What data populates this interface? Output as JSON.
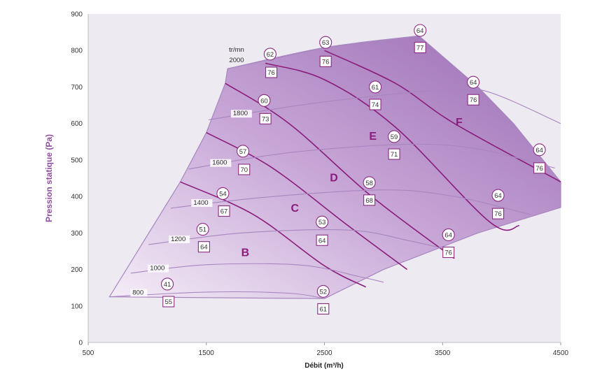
{
  "chart_data": {
    "type": "line",
    "title": "",
    "xlabel": "Débit (m³/h)",
    "ylabel": "Pression statique (Pa)",
    "xlim": [
      500,
      4500
    ],
    "ylim": [
      0,
      900
    ],
    "x_ticks": [
      500,
      1500,
      2500,
      3500,
      4500
    ],
    "y_ticks": [
      0,
      100,
      200,
      300,
      400,
      500,
      600,
      700,
      800,
      900
    ],
    "grid": false,
    "legend": "none",
    "colors": {
      "plot_bg": "#eeeaf2",
      "envelope_fill": "#cfb2dc",
      "zone_border": "#8a1c7c",
      "speed_line": "#a886c0",
      "accent": "#8e4f9e"
    },
    "speed_header": [
      "tr/mn",
      "2000"
    ],
    "speed_curves": [
      {
        "label": "800",
        "points": [
          [
            680,
            125
          ],
          [
            1500,
            138
          ],
          [
            2200,
            135
          ],
          [
            2500,
            120
          ]
        ]
      },
      {
        "label": "1000",
        "points": [
          [
            860,
            190
          ],
          [
            1500,
            213
          ],
          [
            2300,
            212
          ],
          [
            2800,
            180
          ],
          [
            3000,
            165
          ]
        ]
      },
      {
        "label": "1200",
        "points": [
          [
            1010,
            268
          ],
          [
            1800,
            300
          ],
          [
            2700,
            308
          ],
          [
            3200,
            280
          ],
          [
            3600,
            250
          ]
        ]
      },
      {
        "label": "1400",
        "points": [
          [
            1200,
            368
          ],
          [
            2000,
            398
          ],
          [
            3000,
            418
          ],
          [
            3600,
            400
          ],
          [
            4250,
            350
          ]
        ]
      },
      {
        "label": "1600",
        "points": [
          [
            1350,
            475
          ],
          [
            2200,
            520
          ],
          [
            3200,
            543
          ],
          [
            3800,
            530
          ],
          [
            4450,
            478
          ]
        ]
      },
      {
        "label": "1800",
        "points": [
          [
            1520,
            610
          ],
          [
            2400,
            655
          ],
          [
            3400,
            690
          ],
          [
            3850,
            690
          ],
          [
            4500,
            600
          ]
        ]
      },
      {
        "label": "2000",
        "points": [
          [
            1680,
            750
          ],
          [
            2500,
            808
          ],
          [
            3300,
            840
          ]
        ]
      }
    ],
    "zone_borders": [
      {
        "points": [
          [
            1280,
            440
          ],
          [
            1900,
            350
          ],
          [
            2500,
            210
          ],
          [
            2850,
            152
          ]
        ]
      },
      {
        "points": [
          [
            1500,
            575
          ],
          [
            2050,
            480
          ],
          [
            2700,
            320
          ],
          [
            3200,
            200
          ]
        ]
      },
      {
        "points": [
          [
            1660,
            710
          ],
          [
            2200,
            600
          ],
          [
            2900,
            400
          ],
          [
            3600,
            230
          ]
        ]
      },
      {
        "points": [
          [
            2000,
            765
          ],
          [
            2500,
            720
          ],
          [
            3100,
            590
          ],
          [
            3900,
            330
          ],
          [
            4150,
            320
          ]
        ]
      },
      {
        "points": [
          [
            2500,
            800
          ],
          [
            3100,
            710
          ],
          [
            3600,
            600
          ],
          [
            4500,
            440
          ]
        ]
      }
    ],
    "envelope_upper": [
      [
        680,
        125
      ],
      [
        1280,
        440
      ],
      [
        1500,
        575
      ],
      [
        1660,
        710
      ],
      [
        1680,
        750
      ],
      [
        2500,
        808
      ],
      [
        3300,
        840
      ],
      [
        3800,
        700
      ],
      [
        4100,
        600
      ],
      [
        4500,
        440
      ]
    ],
    "envelope_lower": [
      [
        4500,
        370
      ],
      [
        3800,
        300
      ],
      [
        3000,
        200
      ],
      [
        2500,
        120
      ],
      [
        680,
        125
      ]
    ],
    "zone_labels": [
      {
        "label": "B",
        "x": 1830,
        "y": 248
      },
      {
        "label": "C",
        "x": 2250,
        "y": 370
      },
      {
        "label": "D",
        "x": 2580,
        "y": 453
      },
      {
        "label": "E",
        "x": 2910,
        "y": 567
      },
      {
        "label": "F",
        "x": 3640,
        "y": 605
      }
    ],
    "efficiency_markers": [
      {
        "value": "41",
        "x": 1170,
        "y": 160
      },
      {
        "value": "51",
        "x": 1470,
        "y": 310
      },
      {
        "value": "54",
        "x": 1640,
        "y": 408
      },
      {
        "value": "57",
        "x": 1810,
        "y": 524
      },
      {
        "value": "60",
        "x": 1990,
        "y": 663
      },
      {
        "value": "62",
        "x": 2040,
        "y": 790
      },
      {
        "value": "63",
        "x": 2510,
        "y": 822
      },
      {
        "value": "64",
        "x": 3310,
        "y": 855
      },
      {
        "value": "61",
        "x": 2930,
        "y": 700
      },
      {
        "value": "59",
        "x": 3090,
        "y": 564
      },
      {
        "value": "58",
        "x": 2880,
        "y": 438
      },
      {
        "value": "53",
        "x": 2480,
        "y": 330
      },
      {
        "value": "52",
        "x": 2490,
        "y": 140
      },
      {
        "value": "64",
        "x": 3760,
        "y": 713
      },
      {
        "value": "64",
        "x": 4320,
        "y": 528
      },
      {
        "value": "64",
        "x": 3970,
        "y": 403
      },
      {
        "value": "64",
        "x": 3550,
        "y": 295
      }
    ],
    "noise_markers": [
      {
        "value": "55",
        "x": 1180,
        "y": 112
      },
      {
        "value": "64",
        "x": 1480,
        "y": 262
      },
      {
        "value": "67",
        "x": 1650,
        "y": 360
      },
      {
        "value": "70",
        "x": 1820,
        "y": 474
      },
      {
        "value": "73",
        "x": 2000,
        "y": 613
      },
      {
        "value": "76",
        "x": 2050,
        "y": 740
      },
      {
        "value": "76",
        "x": 2510,
        "y": 770
      },
      {
        "value": "77",
        "x": 3310,
        "y": 808
      },
      {
        "value": "74",
        "x": 2930,
        "y": 652
      },
      {
        "value": "71",
        "x": 3090,
        "y": 516
      },
      {
        "value": "68",
        "x": 2880,
        "y": 390
      },
      {
        "value": "64",
        "x": 2480,
        "y": 280
      },
      {
        "value": "61",
        "x": 2490,
        "y": 92
      },
      {
        "value": "76",
        "x": 3760,
        "y": 665
      },
      {
        "value": "76",
        "x": 4320,
        "y": 478
      },
      {
        "value": "76",
        "x": 3970,
        "y": 353
      },
      {
        "value": "76",
        "x": 3550,
        "y": 247
      }
    ]
  }
}
